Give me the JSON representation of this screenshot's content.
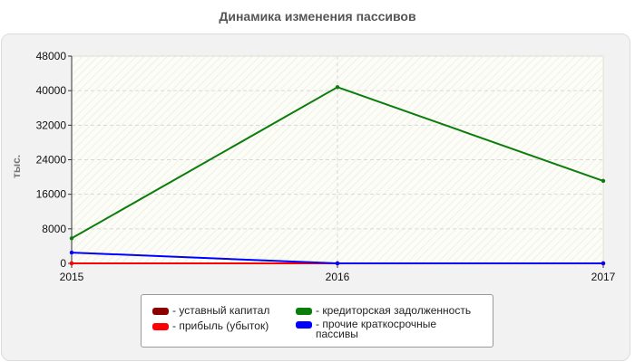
{
  "chart_data": {
    "type": "line",
    "title": "Динамика изменения пассивов",
    "ylabel": "тыс.",
    "x": [
      "2015",
      "2016",
      "2017"
    ],
    "yticks": [
      "0",
      "8000",
      "16000",
      "24000",
      "32000",
      "40000",
      "48000"
    ],
    "ylim": [
      0,
      48000
    ],
    "grid": true,
    "legend_position": "bottom",
    "series": [
      {
        "name": "уставный капитал",
        "color": "#8b0000",
        "values": [
          10,
          10,
          10
        ]
      },
      {
        "name": "прибыль (убыток)",
        "color": "#ff0000",
        "values": [
          0,
          0,
          0
        ]
      },
      {
        "name": "кредиторская задолженность",
        "color": "#0b7d0b",
        "values": [
          5800,
          40800,
          19100
        ]
      },
      {
        "name": "прочие краткосрочные пассивы",
        "color": "#0000ff",
        "values": [
          2500,
          0,
          0
        ]
      }
    ]
  }
}
